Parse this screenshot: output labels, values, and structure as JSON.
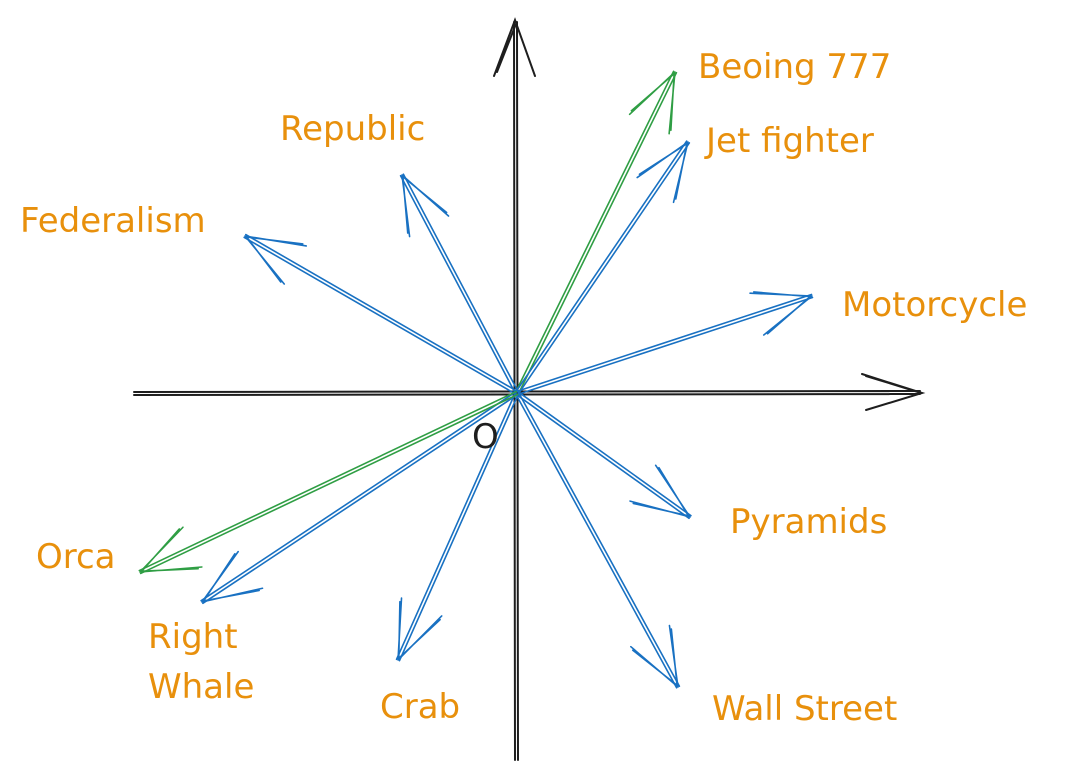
{
  "origin_label": "O",
  "colors": {
    "axis": "#1e1e1e",
    "vector_blue": "#1971c2",
    "vector_green": "#2f9e44",
    "label": "#e8900c"
  },
  "vectors": [
    {
      "name": "vector-boeing-777",
      "label": "Beoing 777",
      "color": "green"
    },
    {
      "name": "vector-jet-fighter",
      "label": "Jet fighter",
      "color": "blue"
    },
    {
      "name": "vector-republic",
      "label": "Republic",
      "color": "blue"
    },
    {
      "name": "vector-federalism",
      "label": "Federalism",
      "color": "blue"
    },
    {
      "name": "vector-motorcycle",
      "label": "Motorcycle",
      "color": "blue"
    },
    {
      "name": "vector-pyramids",
      "label": "Pyramids",
      "color": "blue"
    },
    {
      "name": "vector-wall-street",
      "label": "Wall Street",
      "color": "blue"
    },
    {
      "name": "vector-crab",
      "label": "Crab",
      "color": "blue"
    },
    {
      "name": "vector-right-whale",
      "label": [
        "Right",
        "Whale"
      ],
      "color": "blue"
    },
    {
      "name": "vector-orca",
      "label": "Orca",
      "color": "green"
    }
  ]
}
